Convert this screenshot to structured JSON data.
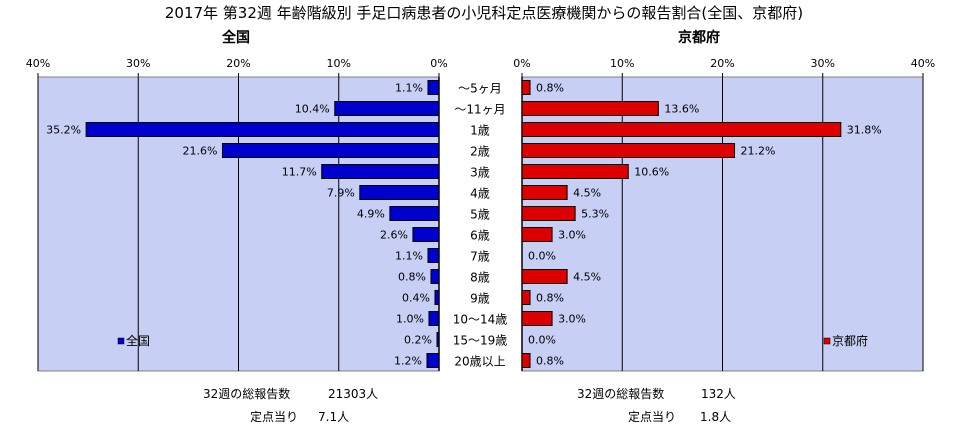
{
  "title": "2017年 第32週 年齢階級別 手足口病患者の小児科定点医療機関からの報告割合(全国、京都府)",
  "colors": {
    "national_bar": "#0000cc",
    "kyoto_bar": "#dd0000",
    "plot_bg": "#c8cff5",
    "grid": "#000000"
  },
  "chart_data": {
    "type": "bar",
    "orientation": "horizontal",
    "categories": [
      "～5ヶ月",
      "～11ヶ月",
      "1歳",
      "2歳",
      "3歳",
      "4歳",
      "5歳",
      "6歳",
      "7歳",
      "8歳",
      "9歳",
      "10～14歳",
      "15～19歳",
      "20歳以上"
    ],
    "panels": [
      {
        "title": "全国",
        "direction": "reversed",
        "xlim": [
          0,
          40
        ],
        "ticks": [
          "0%",
          "10%",
          "20%",
          "30%",
          "40%"
        ],
        "legend": "全国",
        "legend_position": "bottom-left",
        "values": [
          1.1,
          10.4,
          35.2,
          21.6,
          11.7,
          7.9,
          4.9,
          2.6,
          1.1,
          0.8,
          0.4,
          1.0,
          0.2,
          1.2
        ],
        "labels": [
          "1.1%",
          "10.4%",
          "35.2%",
          "21.6%",
          "11.7%",
          "7.9%",
          "4.9%",
          "2.6%",
          "1.1%",
          "0.8%",
          "0.4%",
          "1.0%",
          "0.2%",
          "1.2%"
        ]
      },
      {
        "title": "京都府",
        "direction": "normal",
        "xlim": [
          0,
          40
        ],
        "ticks": [
          "0%",
          "10%",
          "20%",
          "30%",
          "40%"
        ],
        "legend": "京都府",
        "legend_position": "bottom-right",
        "values": [
          0.8,
          13.6,
          31.8,
          21.2,
          10.6,
          4.5,
          5.3,
          3.0,
          0.0,
          4.5,
          0.8,
          3.0,
          0.0,
          0.8
        ],
        "labels": [
          "0.8%",
          "13.6%",
          "31.8%",
          "21.2%",
          "10.6%",
          "4.5%",
          "5.3%",
          "3.0%",
          "0.0%",
          "4.5%",
          "0.8%",
          "3.0%",
          "0.0%",
          "0.8%"
        ]
      }
    ]
  },
  "footer": {
    "national": {
      "total_label": "32週の総報告数",
      "total_value": "21303人",
      "per_label": "定点当り",
      "per_value": "7.1人"
    },
    "kyoto": {
      "total_label": "32週の総報告数",
      "total_value": "132人",
      "per_label": "定点当り",
      "per_value": "1.8人"
    }
  }
}
